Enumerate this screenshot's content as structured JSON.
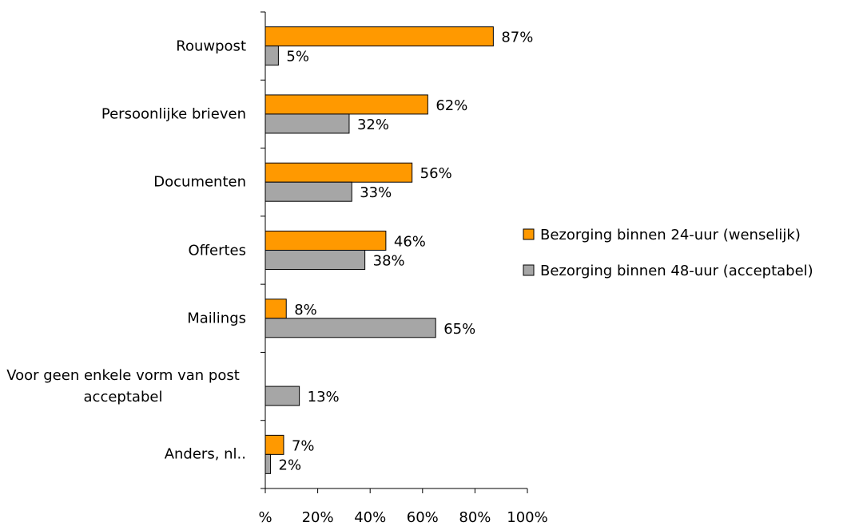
{
  "chart_data": {
    "type": "bar",
    "orientation": "horizontal",
    "categories": [
      "Rouwpost",
      "Persoonlijke brieven",
      "Documenten",
      "Offertes",
      "Mailings",
      "Voor geen enkele vorm van post acceptabel",
      "Anders, nl.."
    ],
    "series": [
      {
        "name": "Bezorging binnen 24-uur (wenselijk)",
        "color": "#ff9900",
        "values": [
          87,
          62,
          56,
          46,
          8,
          null,
          7
        ],
        "value_labels": [
          "87%",
          "62%",
          "56%",
          "46%",
          "8%",
          null,
          "7%"
        ]
      },
      {
        "name": "Bezorging binnen 48-uur (acceptabel)",
        "color": "#a6a6a6",
        "values": [
          5,
          32,
          33,
          38,
          65,
          13,
          2
        ],
        "value_labels": [
          "5%",
          "32%",
          "33%",
          "38%",
          "65%",
          "13%",
          "2%"
        ]
      }
    ],
    "xlim": [
      0,
      100
    ],
    "xticks": [
      {
        "value": 0,
        "label": "%"
      },
      {
        "value": 20,
        "label": "20%"
      },
      {
        "value": 40,
        "label": "40%"
      },
      {
        "value": 60,
        "label": "60%"
      },
      {
        "value": 80,
        "label": "80%"
      },
      {
        "value": 100,
        "label": "100%"
      }
    ],
    "legend": "right",
    "grid": false
  }
}
